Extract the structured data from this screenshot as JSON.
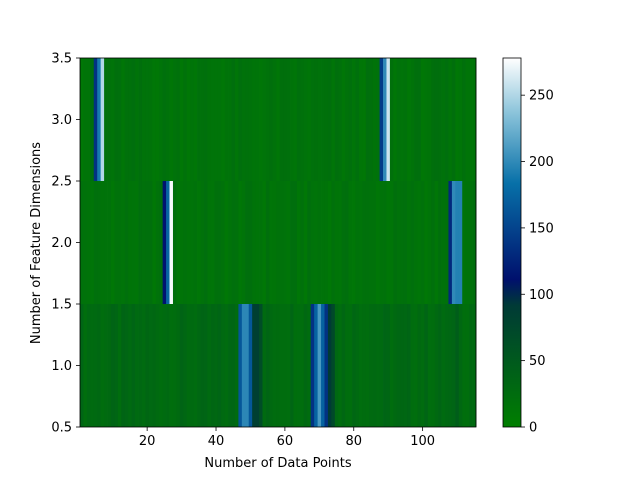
{
  "chart_data": {
    "type": "heatmap",
    "xlabel": "Number of Data Points",
    "ylabel": "Number of Feature Dimensions",
    "xlim": [
      0.5,
      115.5
    ],
    "ylim": [
      0.5,
      3.5
    ],
    "x_ticks": [
      20,
      40,
      60,
      80,
      100
    ],
    "y_ticks": [
      0.5,
      1.0,
      1.5,
      2.0,
      2.5,
      3.0,
      3.5
    ],
    "x_tick_labels": [
      "20",
      "40",
      "60",
      "80",
      "100"
    ],
    "y_tick_labels": [
      "0.5",
      "1.0",
      "1.5",
      "2.0",
      "2.5",
      "3.0",
      "3.5"
    ],
    "colorbar": {
      "range": [
        0,
        278
      ],
      "ticks": [
        0,
        50,
        100,
        150,
        200,
        250
      ],
      "tick_labels": [
        "0",
        "50",
        "100",
        "150",
        "200",
        "250"
      ],
      "colormap": "ocean_r",
      "stops": [
        {
          "v": 0,
          "color": "#007f00"
        },
        {
          "v": 0.33,
          "color": "#003a36"
        },
        {
          "v": 0.4,
          "color": "#00106d"
        },
        {
          "v": 0.66,
          "color": "#0770a8"
        },
        {
          "v": 0.85,
          "color": "#8ac3da"
        },
        {
          "v": 1.0,
          "color": "#ffffff"
        }
      ]
    },
    "rows": [
      {
        "y_center": 1,
        "hotspots": [
          {
            "center": 48.5,
            "width": 4.5,
            "peak": 215
          },
          {
            "center": 51.5,
            "width": 3.5,
            "peak": 95
          },
          {
            "center": 70,
            "width": 4,
            "peak": 210
          },
          {
            "center": 73,
            "width": 3.5,
            "peak": 90
          },
          {
            "center": 110,
            "width": 2,
            "peak": 45
          }
        ]
      },
      {
        "y_center": 2,
        "hotspots": [
          {
            "center": 26,
            "width": 2,
            "peak": 175
          },
          {
            "center": 27,
            "width": 1.2,
            "peak": 275
          },
          {
            "center": 109,
            "width": 2,
            "peak": 200
          },
          {
            "center": 110.5,
            "width": 1.2,
            "peak": 275
          }
        ]
      },
      {
        "y_center": 3,
        "hotspots": [
          {
            "center": 6,
            "width": 2.5,
            "peak": 190
          },
          {
            "center": 7,
            "width": 1.2,
            "peak": 250
          },
          {
            "center": 89,
            "width": 2.5,
            "peak": 200
          },
          {
            "center": 90,
            "width": 1.2,
            "peak": 260
          }
        ]
      }
    ]
  }
}
